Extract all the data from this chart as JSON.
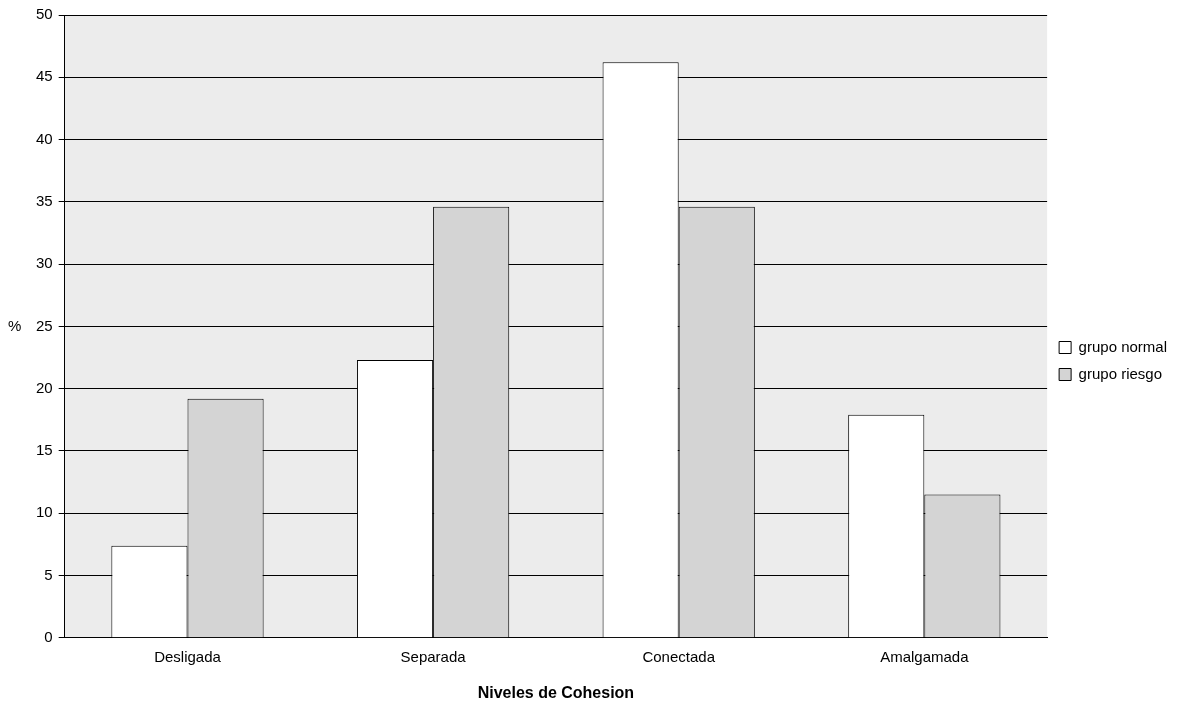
{
  "chart_data": {
    "type": "bar",
    "xlabel": "Niveles de Cohesion",
    "ylabel": "%",
    "categories": [
      "Desligada",
      "Separada",
      "Conectada",
      "Amalgamada"
    ],
    "series": [
      {
        "name": "grupo normal",
        "color": "#ffffff",
        "values": [
          7.4,
          22.3,
          46.2,
          17.9
        ]
      },
      {
        "name": "grupo riesgo",
        "color": "#d4d4d4",
        "values": [
          19.2,
          34.6,
          34.6,
          11.5
        ]
      }
    ],
    "ylim": [
      0,
      50
    ],
    "yticks": [
      0,
      5,
      10,
      15,
      20,
      25,
      30,
      35,
      40,
      45,
      50
    ],
    "grid": "y",
    "legend": "right"
  }
}
